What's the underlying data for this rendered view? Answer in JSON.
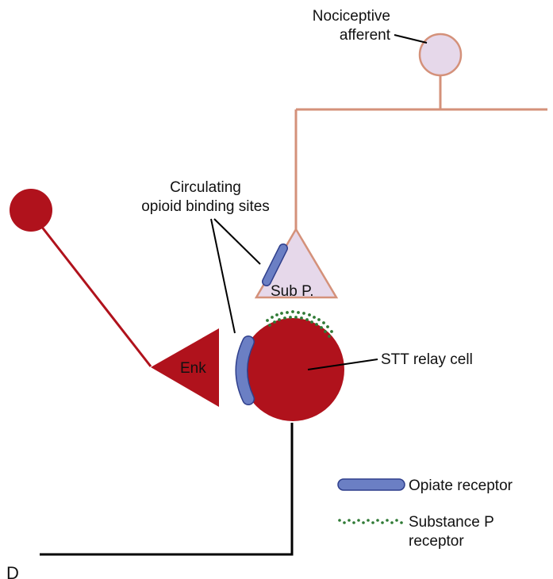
{
  "labels": {
    "nociceptive_line1": "Nociceptive",
    "nociceptive_line2": "afferent",
    "circulating_line1": "Circulating",
    "circulating_line2": "opioid binding sites",
    "sub_p": "Sub P.",
    "enk": "Enk",
    "stt_relay_cell": "STT relay cell",
    "panel_letter": "D"
  },
  "legend": {
    "opiate_receptor": "Opiate receptor",
    "substance_p_line1": "Substance P",
    "substance_p_line2": "receptor"
  },
  "colors": {
    "nociceptive_fill": "#e6d8ea",
    "nociceptive_stroke": "#d4917a",
    "enk_red": "#b0121c",
    "receptor_blue": "#6b7fc4",
    "receptor_stroke": "#2f3f8c",
    "substance_p_green": "#2f7a35",
    "black_line": "#000000"
  }
}
